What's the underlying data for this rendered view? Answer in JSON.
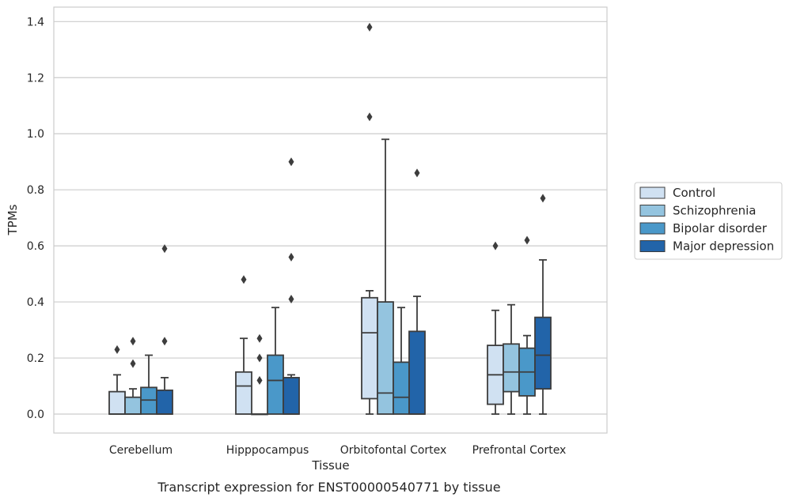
{
  "chart_data": {
    "type": "box",
    "caption": "Transcript expression for ENST00000540771 by tissue",
    "xlabel": "Tissue",
    "ylabel": "TPMs",
    "ylim": [
      -0.065,
      1.45
    ],
    "yticks": [
      "0.0",
      "0.2",
      "0.4",
      "0.6",
      "0.8",
      "1.0",
      "1.2",
      "1.4"
    ],
    "grid": "horizontal",
    "legend_placement": "right-center",
    "categories": [
      "Cerebellum",
      "Hipppocampus",
      "Orbitofontal Cortex",
      "Prefrontal Cortex"
    ],
    "series": [
      {
        "name": "Control",
        "color": "#d0e1f2",
        "boxes": [
          {
            "min": 0.0,
            "q1": 0.0,
            "median": 0.0,
            "q3": 0.08,
            "max": 0.14,
            "outliers": [
              0.23
            ]
          },
          {
            "min": 0.0,
            "q1": 0.0,
            "median": 0.1,
            "q3": 0.15,
            "max": 0.27,
            "outliers": [
              0.48
            ]
          },
          {
            "min": 0.0,
            "q1": 0.055,
            "median": 0.29,
            "q3": 0.415,
            "max": 0.44,
            "outliers": [
              1.06,
              1.38
            ]
          },
          {
            "min": 0.0,
            "q1": 0.035,
            "median": 0.14,
            "q3": 0.245,
            "max": 0.37,
            "outliers": [
              0.6
            ]
          }
        ]
      },
      {
        "name": "Schizophrenia",
        "color": "#94c4df",
        "boxes": [
          {
            "min": 0.0,
            "q1": 0.0,
            "median": 0.0,
            "q3": 0.06,
            "max": 0.09,
            "outliers": [
              0.18,
              0.26
            ]
          },
          {
            "min": 0.0,
            "q1": 0.0,
            "median": 0.0,
            "q3": 0.0,
            "max": 0.0,
            "outliers": [
              0.12,
              0.2,
              0.27
            ]
          },
          {
            "min": 0.0,
            "q1": 0.0,
            "median": 0.075,
            "q3": 0.4,
            "max": 0.98,
            "outliers": []
          },
          {
            "min": 0.0,
            "q1": 0.08,
            "median": 0.15,
            "q3": 0.25,
            "max": 0.39,
            "outliers": []
          }
        ]
      },
      {
        "name": "Bipolar disorder",
        "color": "#4a98c9",
        "boxes": [
          {
            "min": 0.0,
            "q1": 0.0,
            "median": 0.05,
            "q3": 0.095,
            "max": 0.21,
            "outliers": []
          },
          {
            "min": 0.0,
            "q1": 0.0,
            "median": 0.12,
            "q3": 0.21,
            "max": 0.38,
            "outliers": []
          },
          {
            "min": 0.0,
            "q1": 0.0,
            "median": 0.06,
            "q3": 0.185,
            "max": 0.38,
            "outliers": []
          },
          {
            "min": 0.0,
            "q1": 0.065,
            "median": 0.15,
            "q3": 0.235,
            "max": 0.28,
            "outliers": [
              0.62
            ]
          }
        ]
      },
      {
        "name": "Major depression",
        "color": "#2264a9",
        "boxes": [
          {
            "min": 0.0,
            "q1": 0.0,
            "median": 0.0,
            "q3": 0.085,
            "max": 0.13,
            "outliers": [
              0.26,
              0.59
            ]
          },
          {
            "min": 0.0,
            "q1": 0.0,
            "median": 0.0,
            "q3": 0.13,
            "max": 0.14,
            "outliers": [
              0.41,
              0.56,
              0.9
            ]
          },
          {
            "min": 0.0,
            "q1": 0.0,
            "median": 0.0,
            "q3": 0.295,
            "max": 0.42,
            "outliers": [
              0.86
            ]
          },
          {
            "min": 0.0,
            "q1": 0.09,
            "median": 0.21,
            "q3": 0.345,
            "max": 0.55,
            "outliers": [
              0.77
            ]
          }
        ]
      }
    ]
  }
}
